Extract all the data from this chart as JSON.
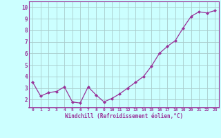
{
  "x": [
    0,
    1,
    2,
    3,
    4,
    5,
    6,
    7,
    8,
    9,
    10,
    11,
    12,
    13,
    14,
    15,
    16,
    17,
    18,
    19,
    20,
    21,
    22,
    23
  ],
  "y": [
    3.5,
    2.3,
    2.6,
    2.7,
    3.1,
    1.8,
    1.7,
    3.1,
    2.4,
    1.8,
    2.1,
    2.5,
    3.0,
    3.5,
    4.0,
    4.9,
    6.0,
    6.6,
    7.1,
    8.2,
    9.2,
    9.6,
    9.5,
    9.7
  ],
  "line_color": "#993399",
  "marker": "D",
  "marker_size": 2.0,
  "linewidth": 0.9,
  "bg_color": "#ccffff",
  "grid_color": "#aacccc",
  "xlabel": "Windchill (Refroidissement éolien,°C)",
  "xlabel_color": "#993399",
  "tick_color": "#993399",
  "xlim": [
    -0.5,
    23.5
  ],
  "ylim": [
    1.3,
    10.5
  ],
  "yticks": [
    2,
    3,
    4,
    5,
    6,
    7,
    8,
    9,
    10
  ],
  "xticks": [
    0,
    1,
    2,
    3,
    4,
    5,
    6,
    7,
    8,
    9,
    10,
    11,
    12,
    13,
    14,
    15,
    16,
    17,
    18,
    19,
    20,
    21,
    22,
    23
  ],
  "spine_color": "#993399",
  "title_color": "#993399"
}
